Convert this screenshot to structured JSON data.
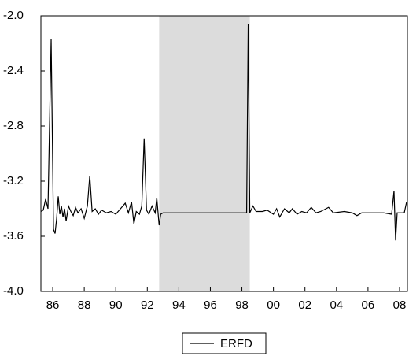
{
  "chart_data": {
    "type": "line",
    "x": [
      1985.25,
      1985.4,
      1985.55,
      1985.7,
      1985.9,
      1986.05,
      1986.15,
      1986.25,
      1986.35,
      1986.45,
      1986.55,
      1986.65,
      1986.75,
      1986.85,
      1987.0,
      1987.15,
      1987.3,
      1987.45,
      1987.6,
      1987.8,
      1988.0,
      1988.2,
      1988.35,
      1988.5,
      1988.7,
      1988.9,
      1989.1,
      1989.4,
      1989.7,
      1990.0,
      1990.3,
      1990.6,
      1990.8,
      1991.0,
      1991.15,
      1991.3,
      1991.5,
      1991.65,
      1991.8,
      1991.95,
      1992.1,
      1992.3,
      1992.5,
      1992.6,
      1992.75,
      1992.85,
      1993.0,
      1998.3,
      1998.4,
      1998.5,
      1998.7,
      1998.9,
      1999.3,
      1999.6,
      2000.0,
      2000.2,
      2000.4,
      2000.7,
      2001.0,
      2001.2,
      2001.5,
      2001.8,
      2002.1,
      2002.4,
      2002.7,
      2003.0,
      2003.5,
      2003.8,
      2004.5,
      2005.0,
      2005.3,
      2005.6,
      2006.5,
      2007.0,
      2007.5,
      2007.65,
      2007.75,
      2007.85,
      2008.3,
      2008.45
    ],
    "series": [
      {
        "name": "ERFD",
        "color": "#000000",
        "values": [
          -3.42,
          -3.41,
          -3.33,
          -3.4,
          -2.17,
          -3.55,
          -3.58,
          -3.47,
          -3.31,
          -3.44,
          -3.38,
          -3.46,
          -3.4,
          -3.49,
          -3.38,
          -3.42,
          -3.45,
          -3.39,
          -3.43,
          -3.4,
          -3.47,
          -3.38,
          -3.16,
          -3.42,
          -3.4,
          -3.44,
          -3.41,
          -3.43,
          -3.42,
          -3.44,
          -3.4,
          -3.36,
          -3.43,
          -3.35,
          -3.51,
          -3.42,
          -3.44,
          -3.38,
          -2.89,
          -3.41,
          -3.44,
          -3.38,
          -3.43,
          -3.32,
          -3.52,
          -3.44,
          -3.43,
          -3.43,
          -2.06,
          -3.43,
          -3.38,
          -3.42,
          -3.42,
          -3.41,
          -3.44,
          -3.4,
          -3.46,
          -3.4,
          -3.43,
          -3.4,
          -3.44,
          -3.42,
          -3.43,
          -3.39,
          -3.43,
          -3.42,
          -3.39,
          -3.43,
          -3.42,
          -3.43,
          -3.45,
          -3.43,
          -3.43,
          -3.43,
          -3.44,
          -3.27,
          -3.63,
          -3.43,
          -3.43,
          -3.35
        ]
      }
    ],
    "shade": [
      1992.75,
      1998.5
    ],
    "shade_color": "#dcdcdc",
    "xlim": [
      1985.25,
      2008.5
    ],
    "ylim": [
      -4,
      -2
    ],
    "xticks": [
      {
        "value": 1986,
        "label": "86"
      },
      {
        "value": 1988,
        "label": "88"
      },
      {
        "value": 1990,
        "label": "90"
      },
      {
        "value": 1992,
        "label": "92"
      },
      {
        "value": 1994,
        "label": "94"
      },
      {
        "value": 1996,
        "label": "96"
      },
      {
        "value": 1998,
        "label": "98"
      },
      {
        "value": 2000,
        "label": "00"
      },
      {
        "value": 2002,
        "label": "02"
      },
      {
        "value": 2004,
        "label": "04"
      },
      {
        "value": 2006,
        "label": "06"
      },
      {
        "value": 2008,
        "label": "08"
      }
    ],
    "yticks": [
      {
        "value": -4,
        "label": "-4.0"
      },
      -3.6,
      -3.2,
      -2.8,
      -2.4,
      {
        "value": -2,
        "label": "-2.0"
      }
    ],
    "legend": "bottom"
  }
}
